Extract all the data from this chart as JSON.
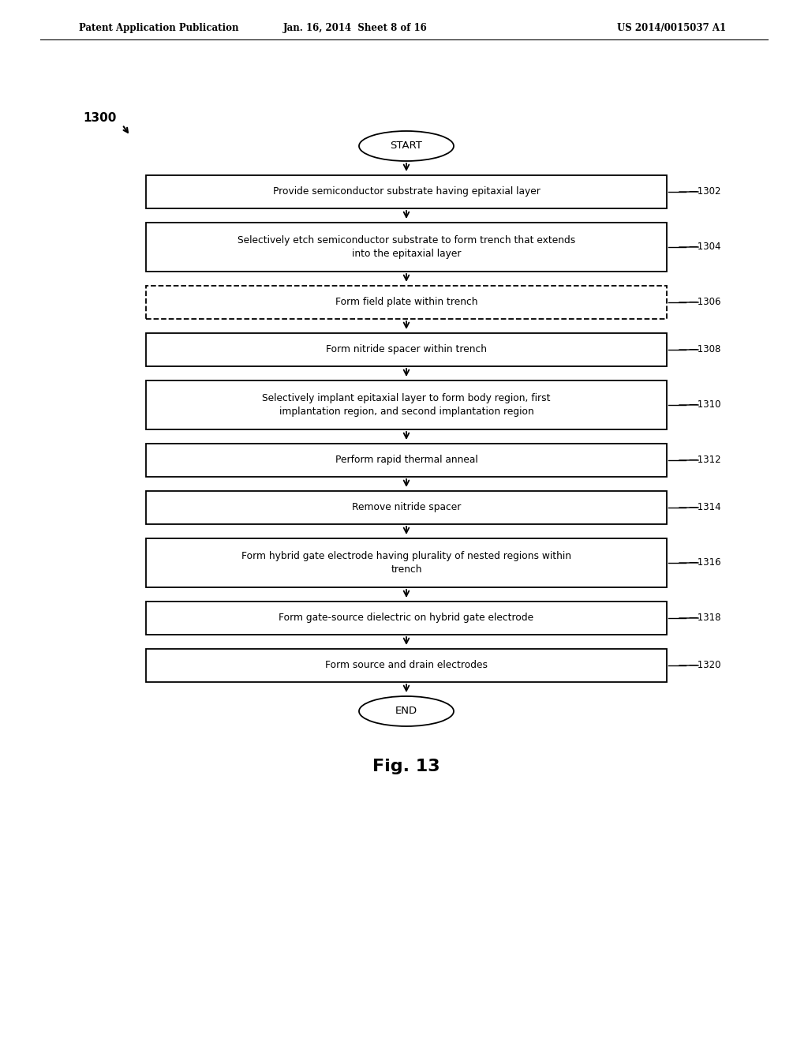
{
  "title_left": "Patent Application Publication",
  "title_mid": "Jan. 16, 2014  Sheet 8 of 16",
  "title_right": "US 2014/0015037 A1",
  "diagram_label": "1300",
  "fig_label": "Fig. 13",
  "start_label": "START",
  "end_label": "END",
  "steps": [
    {
      "id": "1302",
      "text": "Provide semiconductor substrate having epitaxial layer",
      "dashed": false
    },
    {
      "id": "1304",
      "text": "Selectively etch semiconductor substrate to form trench that extends\ninto the epitaxial layer",
      "dashed": false
    },
    {
      "id": "1306",
      "text": "Form field plate within trench",
      "dashed": true
    },
    {
      "id": "1308",
      "text": "Form nitride spacer within trench",
      "dashed": false
    },
    {
      "id": "1310",
      "text": "Selectively implant epitaxial layer to form body region, first\nimplantation region, and second implantation region",
      "dashed": false
    },
    {
      "id": "1312",
      "text": "Perform rapid thermal anneal",
      "dashed": false
    },
    {
      "id": "1314",
      "text": "Remove nitride spacer",
      "dashed": false
    },
    {
      "id": "1316",
      "text": "Form hybrid gate electrode having plurality of nested regions within\ntrench",
      "dashed": false
    },
    {
      "id": "1318",
      "text": "Form gate-source dielectric on hybrid gate electrode",
      "dashed": false
    },
    {
      "id": "1320",
      "text": "Form source and drain electrodes",
      "dashed": false
    }
  ],
  "bg_color": "#ffffff",
  "box_edge_color": "#000000",
  "text_color": "#000000",
  "arrow_color": "#000000"
}
